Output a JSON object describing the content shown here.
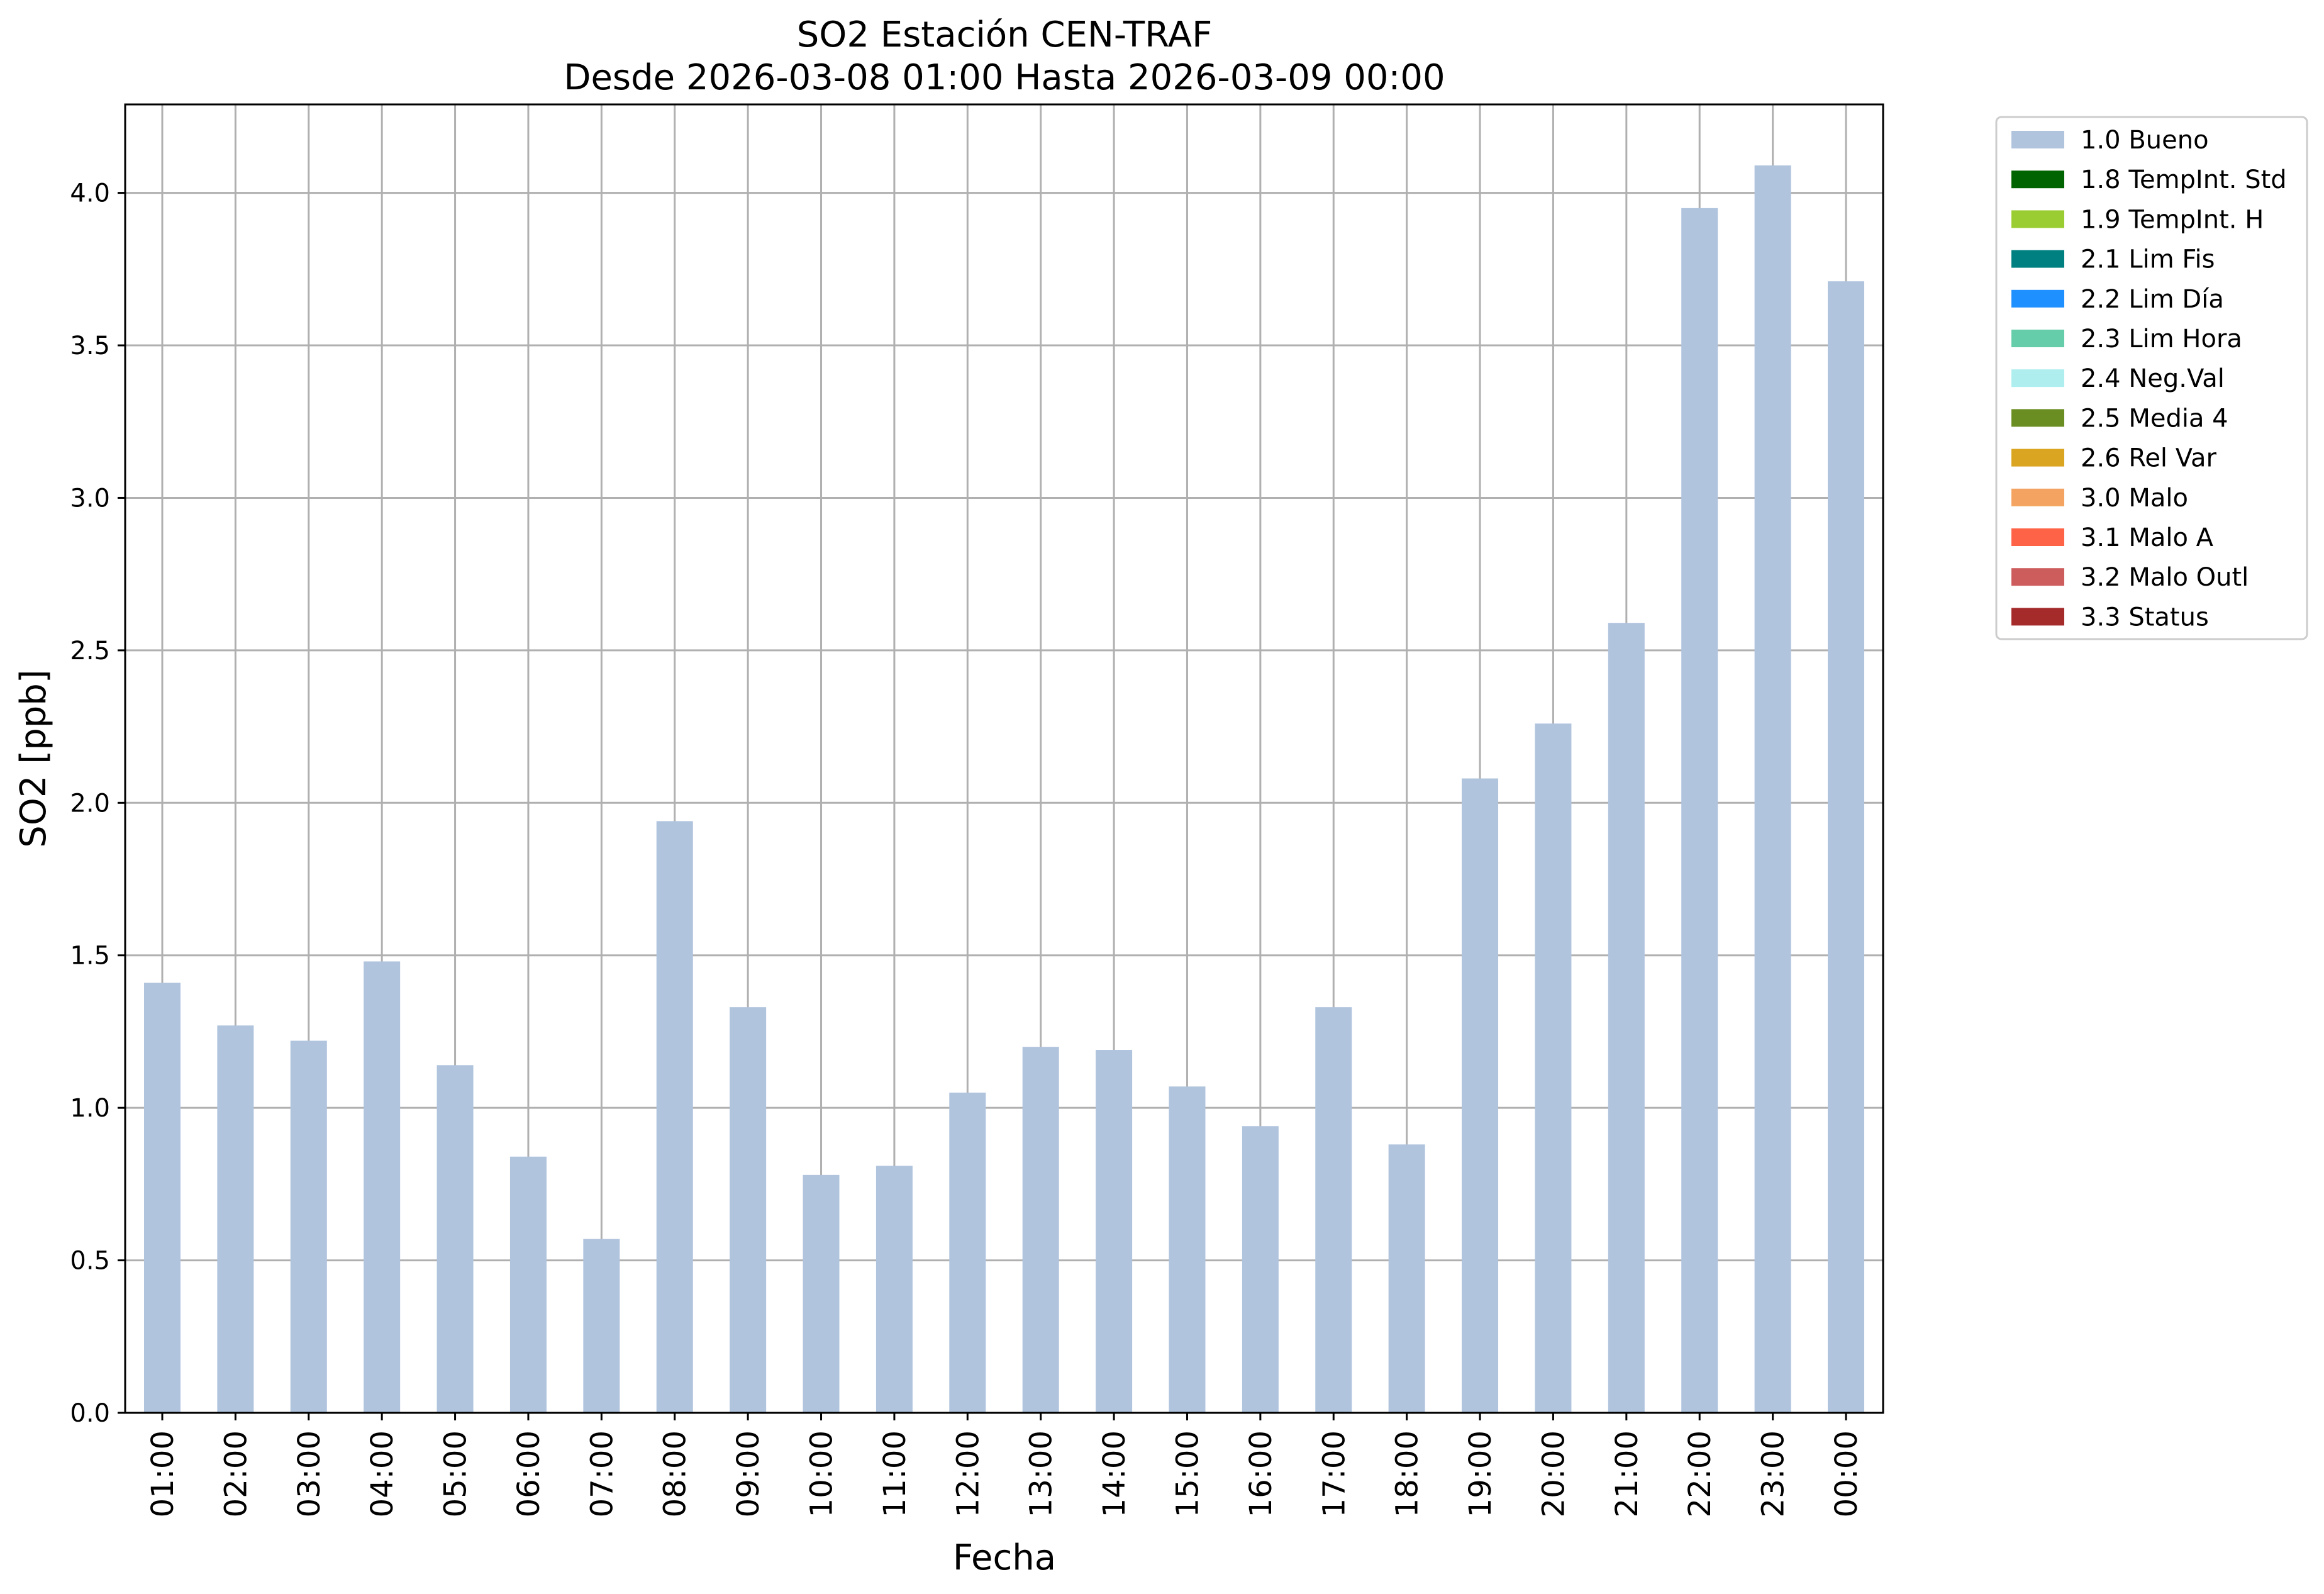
{
  "chart_data": {
    "type": "bar",
    "title": "SO2 Estación CEN-TRAF",
    "subtitle": "Desde 2026-03-08 01:00 Hasta 2026-03-09 00:00",
    "xlabel": "Fecha",
    "ylabel": "SO2 [ppb]",
    "ylim": [
      0,
      4.29
    ],
    "yticks": [
      "0.0",
      "0.5",
      "1.0",
      "1.5",
      "2.0",
      "2.5",
      "3.0",
      "3.5",
      "4.0"
    ],
    "grid": true,
    "legend_position": "outside-top-right",
    "categories": [
      "01:00",
      "02:00",
      "03:00",
      "04:00",
      "05:00",
      "06:00",
      "07:00",
      "08:00",
      "09:00",
      "10:00",
      "11:00",
      "12:00",
      "13:00",
      "14:00",
      "15:00",
      "16:00",
      "17:00",
      "18:00",
      "19:00",
      "20:00",
      "21:00",
      "22:00",
      "23:00",
      "00:00"
    ],
    "series": [
      {
        "name": "1.0 Bueno",
        "color": "#b0c4de",
        "values": [
          1.41,
          1.27,
          1.22,
          1.48,
          1.14,
          0.84,
          0.57,
          1.94,
          1.33,
          0.78,
          0.81,
          1.05,
          1.2,
          1.19,
          1.07,
          0.94,
          1.33,
          0.88,
          2.08,
          2.26,
          2.59,
          3.95,
          4.09,
          3.71
        ]
      }
    ],
    "legend": [
      {
        "label": "1.0 Bueno",
        "color": "#b0c4de"
      },
      {
        "label": "1.8 TempInt. Std",
        "color": "#006400"
      },
      {
        "label": "1.9 TempInt. H",
        "color": "#9acd32"
      },
      {
        "label": "2.1 Lim Fis",
        "color": "#008080"
      },
      {
        "label": "2.2 Lim Día",
        "color": "#1e90ff"
      },
      {
        "label": "2.3 Lim Hora",
        "color": "#66cdaa"
      },
      {
        "label": "2.4 Neg.Val",
        "color": "#afeeee"
      },
      {
        "label": "2.5 Media 4",
        "color": "#6b8e23"
      },
      {
        "label": "2.6 Rel Var",
        "color": "#daa520"
      },
      {
        "label": "3.0 Malo",
        "color": "#f4a460"
      },
      {
        "label": "3.1 Malo A",
        "color": "#ff6347"
      },
      {
        "label": "3.2 Malo Outl",
        "color": "#cd5c5c"
      },
      {
        "label": "3.3 Status",
        "color": "#a52a2a"
      }
    ]
  }
}
